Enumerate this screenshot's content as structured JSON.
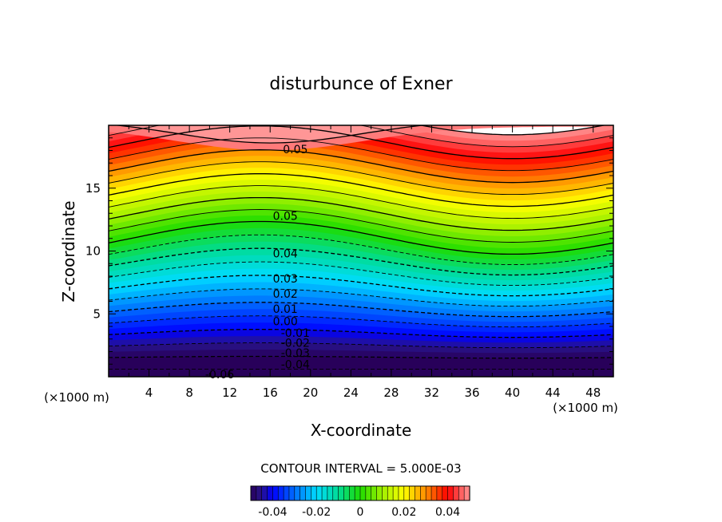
{
  "chart_data": {
    "type": "contour",
    "title": "disturbunce of Exner",
    "xlabel": "X-coordinate",
    "ylabel": "Z-coordinate",
    "x_unit": "(×1000 m)",
    "y_unit": "(×1000 m)",
    "xlim": [
      0,
      50
    ],
    "ylim": [
      0,
      20
    ],
    "x_ticks": [
      4,
      8,
      12,
      16,
      20,
      24,
      28,
      32,
      36,
      40,
      44,
      48
    ],
    "y_ticks": [
      5,
      10,
      15
    ],
    "contour_interval_text": "CONTOUR INTERVAL = 5.000E-03",
    "contour_labels": [
      {
        "text": "0.05",
        "x": 18.5,
        "z": 18.1
      },
      {
        "text": "0.05",
        "x": 17.5,
        "z": 12.8
      },
      {
        "text": "0.04",
        "x": 17.5,
        "z": 9.8
      },
      {
        "text": "0.03",
        "x": 17.5,
        "z": 7.8
      },
      {
        "text": "0.02",
        "x": 17.5,
        "z": 6.6
      },
      {
        "text": "0.01",
        "x": 17.5,
        "z": 5.4
      },
      {
        "text": "0.00",
        "x": 17.5,
        "z": 4.4
      },
      {
        "text": "-0.01",
        "x": 18.5,
        "z": 3.5
      },
      {
        "text": "-0.02",
        "x": 18.5,
        "z": 2.7
      },
      {
        "text": "-0.03",
        "x": 18.5,
        "z": 1.9
      },
      {
        "text": "-0.04",
        "x": 18.5,
        "z": 1.0
      },
      {
        "text": "-0.06",
        "x": 11,
        "z": 0.2
      }
    ],
    "colorbar": {
      "range": [
        -0.05,
        0.05
      ],
      "tick_values": [
        -0.04,
        -0.02,
        0,
        0.02,
        0.04
      ],
      "tick_labels": [
        "-0.04",
        "-0.02",
        "0",
        "0.02",
        "0.04"
      ]
    }
  }
}
